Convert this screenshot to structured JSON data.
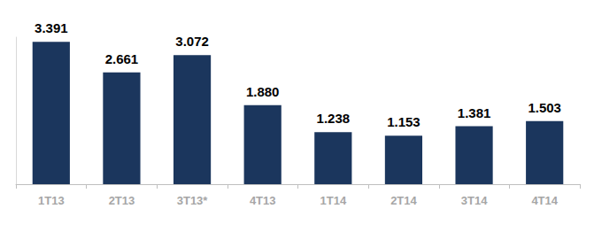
{
  "chart_data": {
    "type": "bar",
    "categories": [
      "1T13",
      "2T13",
      "3T13*",
      "4T13",
      "1T14",
      "2T14",
      "3T14",
      "4T14"
    ],
    "values": [
      3391,
      2661,
      3072,
      1880,
      1238,
      1153,
      1381,
      1503
    ],
    "value_labels": [
      "3.391",
      "2.661",
      "3.072",
      "1.880",
      "1.238",
      "1.153",
      "1.381",
      "1.503"
    ],
    "color": "#1b365d",
    "ylim": [
      0,
      3500
    ],
    "grid": false,
    "data_labels": true,
    "tick_labels": "x"
  }
}
